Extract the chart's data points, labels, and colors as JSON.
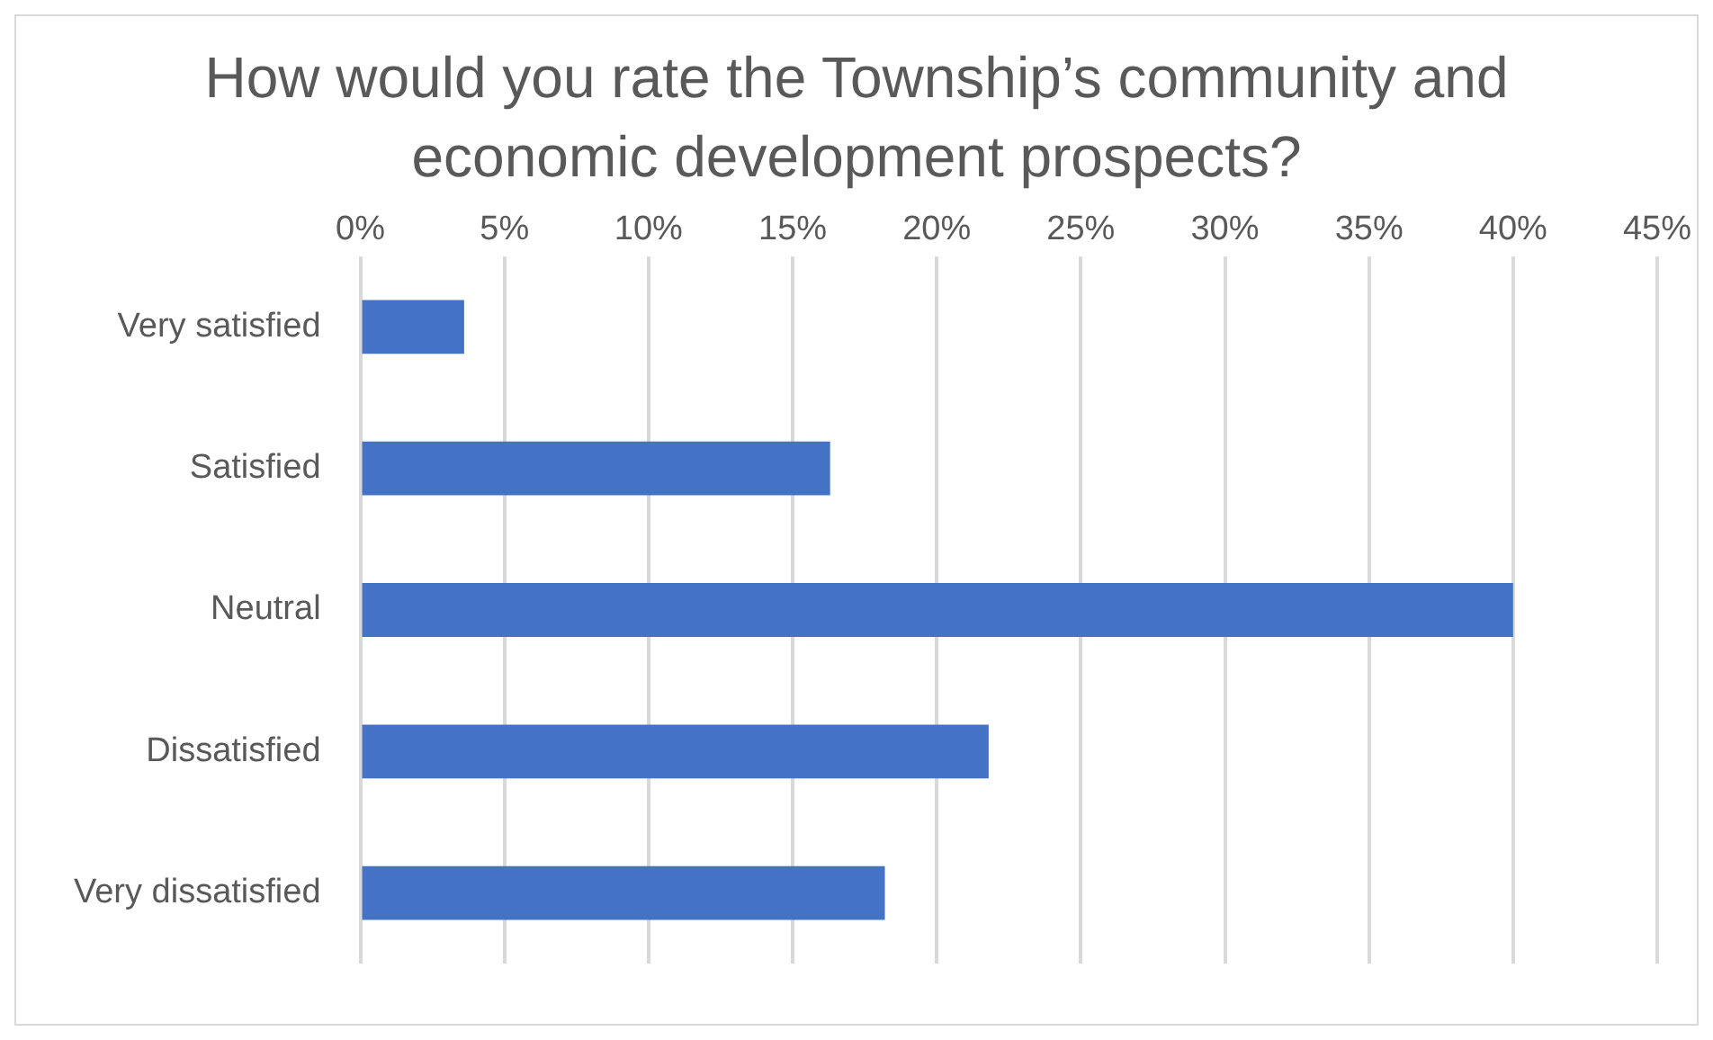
{
  "chart_data": {
    "type": "bar",
    "orientation": "horizontal",
    "title": "How would you rate the Township’s community and economic development prospects?",
    "categories": [
      "Very satisfied",
      "Satisfied",
      "Neutral",
      "Dissatisfied",
      "Very dissatisfied"
    ],
    "values": [
      3.6,
      16.3,
      40,
      21.8,
      18.2
    ],
    "color": "#4472c4",
    "xlim": [
      0,
      45
    ],
    "xticks": [
      {
        "value": 0,
        "label": "0%"
      },
      {
        "value": 5,
        "label": "5%"
      },
      {
        "value": 10,
        "label": "10%"
      },
      {
        "value": 15,
        "label": "15%"
      },
      {
        "value": 20,
        "label": "20%"
      },
      {
        "value": 25,
        "label": "25%"
      },
      {
        "value": 30,
        "label": "30%"
      },
      {
        "value": 35,
        "label": "35%"
      },
      {
        "value": 40,
        "label": "40%"
      },
      {
        "value": 45,
        "label": "45%"
      }
    ],
    "grid": "x"
  }
}
